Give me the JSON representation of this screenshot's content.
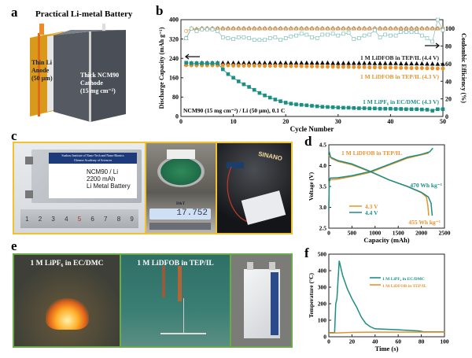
{
  "panel_a": {
    "label": "a",
    "title": "Practical Li-metal Battery",
    "anode_lines": [
      "Thin Li",
      "Anode",
      "(50 µm)"
    ],
    "cathode_lines": [
      "Thick NCM90",
      "Cathode",
      "(15 mg cm⁻²)"
    ]
  },
  "panel_c": {
    "label": "c",
    "institute_line1": "Suzhou Institute of Nano-Tech and Nano-Bionics",
    "institute_line2": "Chinese Academy of Sciences",
    "cell_lines": [
      "NCM90 / Li",
      "2200 mAh",
      "Li Metal Battery"
    ],
    "ruler_numbers": [
      "1",
      "2",
      "3",
      "4",
      "5",
      "6",
      "7",
      "8",
      "9"
    ],
    "scale_brand": "D&T",
    "scale_reading": "17.752",
    "sign_text": "SINANO",
    "frame_color": "#f2c12e"
  },
  "panel_e": {
    "label": "e",
    "caption_left": "1 M LiPF₆ in EC/DMC",
    "caption_mid": "1 M LiDFOB in TEP/IL",
    "frame_color": "#6aaa4a"
  },
  "chart_data": [
    {
      "id": "b",
      "label": "b",
      "type": "scatter",
      "xlabel": "Cycle Number",
      "ylabel": "Discharge Capacity (mAh g⁻¹)",
      "y2label": "Coulombic Efficiency (%)",
      "xlim": [
        0,
        50
      ],
      "ylim": [
        0,
        400
      ],
      "y2lim": [
        0,
        110
      ],
      "xticks": [
        0,
        10,
        20,
        30,
        40,
        50
      ],
      "yticks": [
        0,
        80,
        160,
        240,
        320,
        400
      ],
      "y2ticks": [
        0,
        20,
        40,
        60,
        80,
        100
      ],
      "annotation": "NCM90 (15 mg cm⁻²) / Li (50 µm), 0.1 C",
      "series": [
        {
          "name": "1 M LiDFOB in TEP/IL (4.4 V)",
          "color": "#111111",
          "marker": "triangle",
          "axis": "capacity",
          "values": [
            215,
            220,
            220,
            221,
            221,
            221,
            221,
            221,
            221,
            221,
            221,
            221,
            221,
            221,
            221,
            221,
            221,
            221,
            221,
            221,
            221,
            221,
            221,
            221,
            221,
            221,
            221,
            221,
            220,
            220,
            220,
            220,
            220,
            220,
            220,
            220,
            219,
            219,
            219,
            219,
            219,
            218,
            218,
            218,
            218,
            218,
            217,
            217,
            216,
            216
          ]
        },
        {
          "name": "1 M LiDFOB in TEP/IL (4.3 V)",
          "color": "#e8922a",
          "marker": "circle",
          "axis": "capacity",
          "values": [
            212,
            211,
            211,
            211,
            211,
            211,
            211,
            211,
            211,
            210,
            210,
            210,
            210,
            210,
            210,
            209,
            209,
            209,
            209,
            208,
            208,
            208,
            208,
            207,
            207,
            207,
            206,
            206,
            206,
            205,
            205,
            205,
            204,
            204,
            204,
            203,
            203,
            203,
            202,
            202,
            202,
            201,
            201,
            200,
            200,
            200,
            199,
            199,
            198,
            198
          ]
        },
        {
          "name": "1 M LiPF₆ in EC/DMC (4.3 V)",
          "color": "#1a8f84",
          "marker": "square",
          "axis": "capacity",
          "values": [
            222,
            220,
            220,
            220,
            220,
            220,
            220,
            195,
            175,
            160,
            145,
            133,
            122,
            110,
            97,
            87,
            78,
            70,
            63,
            57,
            53,
            50,
            48,
            46,
            44,
            42,
            40,
            39,
            38,
            37,
            36,
            36,
            35,
            34,
            34,
            33,
            33,
            32,
            32,
            32,
            31,
            31,
            30,
            30,
            30,
            29,
            28,
            24,
            30,
            30
          ]
        },
        {
          "name": "CE 4.4 V",
          "color": "#555555",
          "marker": "open-triangle",
          "axis": "efficiency",
          "values": [
            89,
            100,
            99,
            100,
            100,
            100,
            100,
            100,
            100,
            100,
            100,
            100,
            100,
            100,
            100,
            100,
            100,
            100,
            100,
            100,
            100,
            100,
            100,
            100,
            100,
            100,
            100,
            100,
            100,
            100,
            100,
            100,
            100,
            100,
            100,
            100,
            100,
            100,
            100,
            100,
            100,
            100,
            100,
            100,
            100,
            100,
            100,
            100,
            100,
            100
          ]
        },
        {
          "name": "CE 4.3 V",
          "color": "#e8922a",
          "marker": "open-circle",
          "axis": "efficiency",
          "values": [
            97,
            100,
            99,
            100,
            100,
            100,
            100,
            100,
            100,
            100,
            100,
            100,
            100,
            100,
            100,
            100,
            100,
            100,
            100,
            100,
            100,
            100,
            100,
            100,
            100,
            100,
            100,
            100,
            100,
            100,
            100,
            100,
            100,
            100,
            100,
            100,
            100,
            100,
            100,
            100,
            100,
            100,
            100,
            100,
            100,
            100,
            100,
            100,
            100,
            100
          ]
        },
        {
          "name": "CE LiPF₆",
          "color": "#6fb7b0",
          "marker": "open-square",
          "axis": "efficiency",
          "values": [
            89,
            100,
            97,
            99,
            99,
            99,
            97,
            90,
            89,
            88,
            90,
            90,
            89,
            87,
            87,
            87,
            89,
            90,
            87,
            89,
            91,
            92,
            94,
            93,
            90,
            89,
            93,
            93,
            94,
            92,
            94,
            95,
            88,
            89,
            92,
            93,
            98,
            90,
            93,
            92,
            92,
            96,
            96,
            96,
            96,
            92,
            89,
            85,
            110,
            98
          ]
        }
      ]
    },
    {
      "id": "d",
      "label": "d",
      "type": "line",
      "title": "1 M LiDFOB in TEP/IL",
      "xlabel": "Capacity (mAh)",
      "ylabel": "Voltage (V)",
      "xlim": [
        0,
        2500
      ],
      "ylim": [
        2.5,
        4.5
      ],
      "xticks": [
        0,
        500,
        1000,
        1500,
        2000,
        2500
      ],
      "yticks": [
        2.5,
        3.0,
        3.5,
        4.0,
        4.5
      ],
      "annotations": [
        "470 Wh kg⁻¹",
        "455 Wh kg⁻¹"
      ],
      "legend": [
        "4.3 V",
        "4.4 V"
      ],
      "series": [
        {
          "name": "4.3 V",
          "color": "#e8922a",
          "points": [
            [
              0,
              2.95
            ],
            [
              8,
              3.6
            ],
            [
              30,
              3.66
            ],
            [
              200,
              3.68
            ],
            [
              500,
              3.74
            ],
            [
              900,
              3.84
            ],
            [
              1300,
              4.01
            ],
            [
              1700,
              4.18
            ],
            [
              2000,
              4.26
            ],
            [
              2160,
              4.3
            ]
          ]
        },
        {
          "name": "4.3 V",
          "color": "#e8922a",
          "points": [
            [
              0,
              4.25
            ],
            [
              60,
              4.17
            ],
            [
              200,
              4.1
            ],
            [
              500,
              4.02
            ],
            [
              900,
              3.85
            ],
            [
              1300,
              3.66
            ],
            [
              1700,
              3.5
            ],
            [
              2000,
              3.35
            ],
            [
              2110,
              3.25
            ],
            [
              2140,
              3.05
            ],
            [
              2160,
              2.8
            ]
          ]
        },
        {
          "name": "4.4 V",
          "color": "#1a8f84",
          "points": [
            [
              0,
              2.93
            ],
            [
              8,
              3.62
            ],
            [
              30,
              3.7
            ],
            [
              200,
              3.71
            ],
            [
              500,
              3.76
            ],
            [
              900,
              3.86
            ],
            [
              1300,
              4.03
            ],
            [
              1700,
              4.2
            ],
            [
              2000,
              4.27
            ],
            [
              2180,
              4.33
            ],
            [
              2250,
              4.42
            ]
          ]
        },
        {
          "name": "4.4 V",
          "color": "#1a8f84",
          "points": [
            [
              0,
              4.37
            ],
            [
              40,
              4.2
            ],
            [
              200,
              4.12
            ],
            [
              500,
              4.04
            ],
            [
              900,
              3.86
            ],
            [
              1300,
              3.66
            ],
            [
              1700,
              3.5
            ],
            [
              2000,
              3.36
            ],
            [
              2150,
              3.25
            ],
            [
              2210,
              3.1
            ],
            [
              2235,
              2.8
            ]
          ]
        }
      ]
    },
    {
      "id": "f",
      "label": "f",
      "type": "line",
      "xlabel": "Time (s)",
      "ylabel": "Temperature (°C)",
      "xlim": [
        0,
        100
      ],
      "ylim": [
        0,
        500
      ],
      "xticks": [
        0,
        20,
        40,
        60,
        80,
        100
      ],
      "yticks": [
        0,
        100,
        200,
        300,
        400,
        500
      ],
      "legend": [
        "1 M LiPF₆ in EC/DMC",
        "1 M LiDFOB in TEP/IL"
      ],
      "series": [
        {
          "name": "1 M LiPF₆ in EC/DMC",
          "color": "#1a8f84",
          "points": [
            [
              0,
              25
            ],
            [
              5,
              25
            ],
            [
              6,
              200
            ],
            [
              7,
              230
            ],
            [
              9,
              460
            ],
            [
              12,
              370
            ],
            [
              16,
              290
            ],
            [
              20,
              230
            ],
            [
              24,
              180
            ],
            [
              28,
              120
            ],
            [
              32,
              80
            ],
            [
              36,
              60
            ],
            [
              40,
              48
            ],
            [
              50,
              45
            ],
            [
              60,
              42
            ],
            [
              70,
              38
            ],
            [
              78,
              35
            ],
            [
              82,
              30
            ],
            [
              100,
              30
            ]
          ]
        },
        {
          "name": "1 M LiDFOB in TEP/IL",
          "color": "#e8922a",
          "points": [
            [
              0,
              22
            ],
            [
              10,
              24
            ],
            [
              20,
              27
            ],
            [
              40,
              28
            ],
            [
              100,
              28
            ]
          ]
        }
      ]
    }
  ]
}
